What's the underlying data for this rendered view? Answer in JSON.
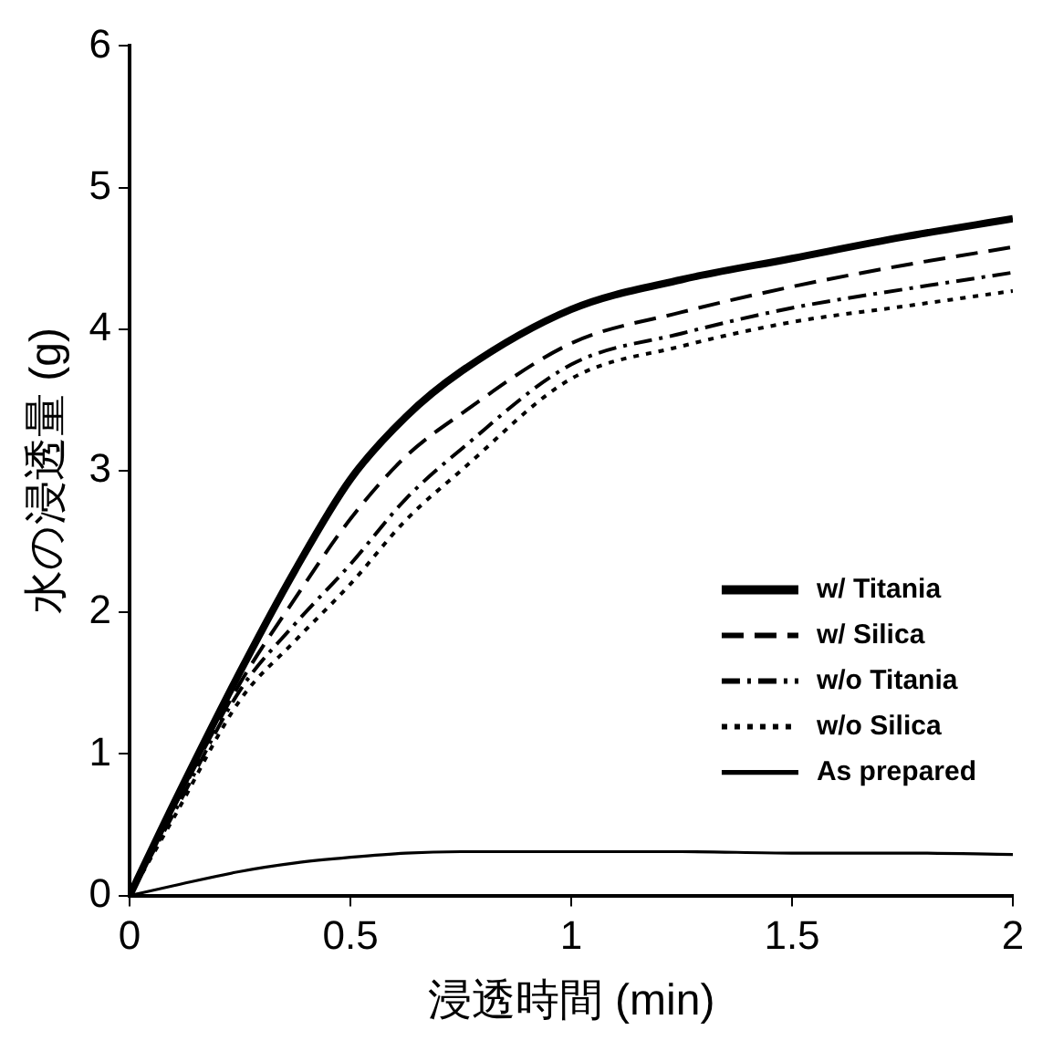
{
  "chart_data": {
    "type": "line",
    "xlabel": "浸透時間 (min)",
    "ylabel": "水の浸透量 (g)",
    "x": [
      0,
      0.1,
      0.25,
      0.375,
      0.5,
      0.625,
      0.75,
      1,
      1.25,
      1.5,
      1.75,
      2
    ],
    "series": [
      {
        "name": "w/ Titania",
        "color": "#000000",
        "line_style": "solid",
        "values": [
          0,
          0.65,
          1.58,
          2.3,
          2.94,
          3.38,
          3.7,
          4.14,
          4.35,
          4.5,
          4.65,
          4.78
        ]
      },
      {
        "name": "w/ Silica",
        "color": "#000000",
        "line_style": "dashed",
        "values": [
          0,
          0.62,
          1.5,
          2.1,
          2.66,
          3.1,
          3.4,
          3.9,
          4.12,
          4.3,
          4.45,
          4.58
        ]
      },
      {
        "name": "w/o Titania",
        "color": "#000000",
        "line_style": "dashdot",
        "values": [
          0,
          0.58,
          1.45,
          1.92,
          2.34,
          2.8,
          3.15,
          3.75,
          3.97,
          4.15,
          4.28,
          4.4
        ]
      },
      {
        "name": "w/o Silica",
        "color": "#000000",
        "line_style": "dotted",
        "values": [
          0,
          0.55,
          1.38,
          1.8,
          2.2,
          2.65,
          3.0,
          3.65,
          3.88,
          4.05,
          4.16,
          4.27
        ]
      },
      {
        "name": "As prepared",
        "color": "#000000",
        "line_style": "solid",
        "values": [
          0,
          0.07,
          0.17,
          0.23,
          0.27,
          0.3,
          0.31,
          0.31,
          0.31,
          0.3,
          0.3,
          0.29
        ]
      }
    ],
    "xlim": [
      0,
      2
    ],
    "xticks": [
      0,
      0.5,
      1,
      1.5,
      2
    ],
    "ylim": [
      0,
      6
    ],
    "yticks": [
      0,
      1,
      2,
      3,
      4,
      5,
      6
    ],
    "grid": false,
    "legend": "bottom right",
    "marker": "none"
  }
}
